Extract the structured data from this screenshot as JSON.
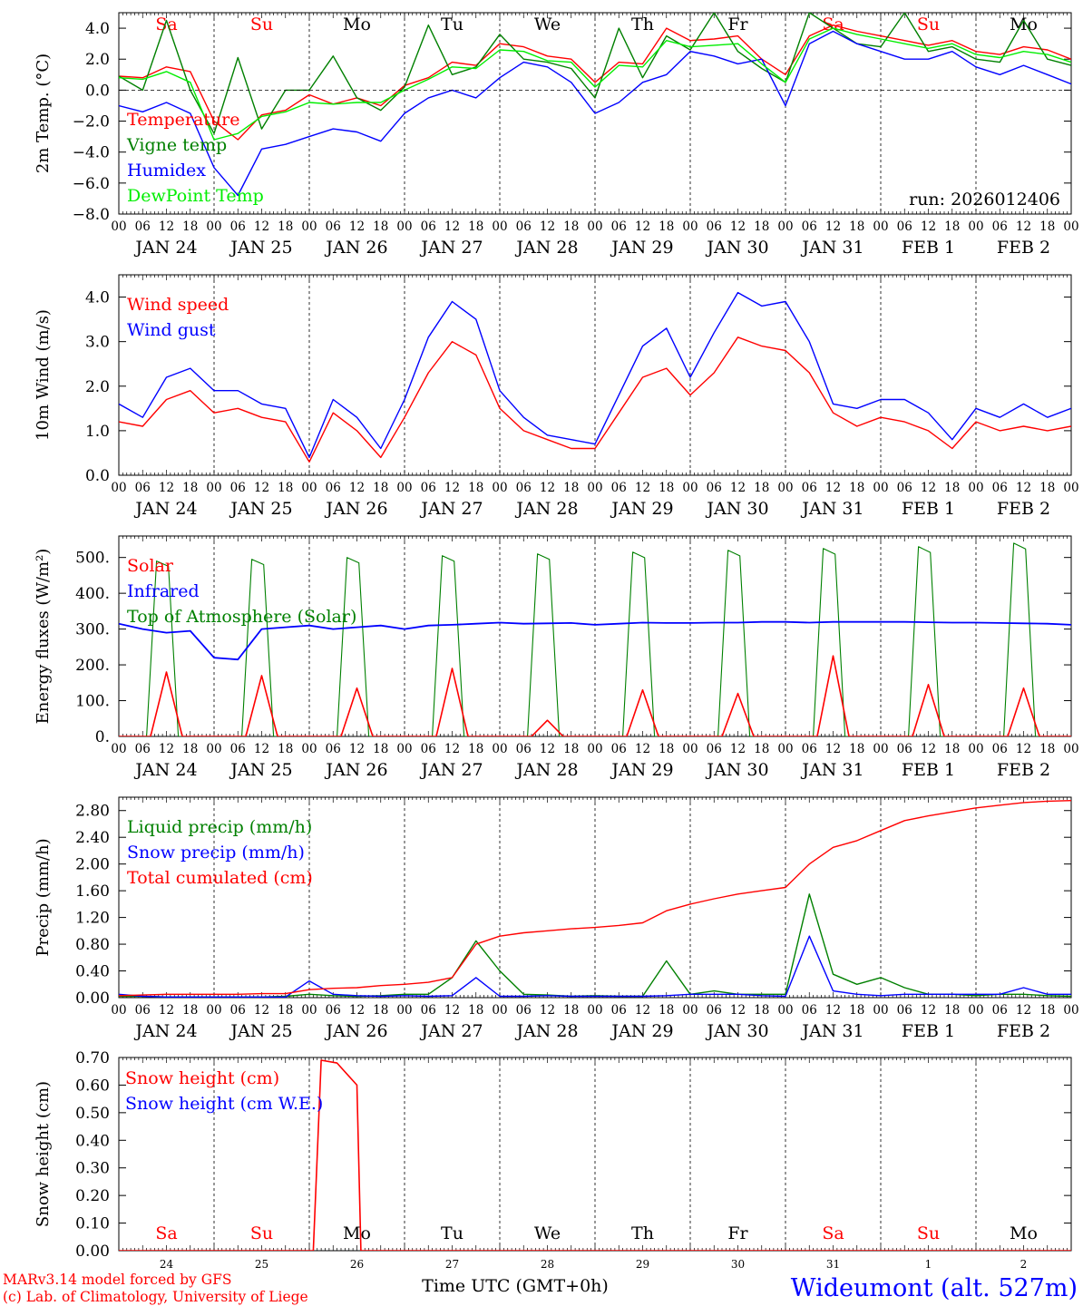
{
  "footer": {
    "model": "MARv3.14 model forced by GFS",
    "copyright": "(c) Lab. of Climatology, University of Liege",
    "time_label": "Time UTC (GMT+0h)",
    "station": "Wideumont (alt. 527m)"
  },
  "days": [
    "JAN 24",
    "JAN 25",
    "JAN 26",
    "JAN 27",
    "JAN 28",
    "JAN 29",
    "JAN 30",
    "JAN 31",
    "FEB  1",
    "FEB  2"
  ],
  "day_numbers": [
    "24",
    "25",
    "26",
    "27",
    "28",
    "29",
    "30",
    "31",
    "1",
    "2"
  ],
  "weekdays": [
    "Sa",
    "Su",
    "Mo",
    "Tu",
    "We",
    "Th",
    "Fr",
    "Sa",
    "Su",
    "Mo"
  ],
  "weekday_colors": [
    "#ff0000",
    "#ff0000",
    "#000000",
    "#000000",
    "#000000",
    "#000000",
    "#000000",
    "#ff0000",
    "#ff0000",
    "#000000"
  ],
  "hour_ticks": [
    "00",
    "06",
    "12",
    "18"
  ],
  "final_hour": "00",
  "colors": {
    "red": "#ff0000",
    "green": "#008000",
    "blue": "#0000ff",
    "lightgreen": "#00ee00"
  },
  "chart_data": [
    {
      "type": "line",
      "ylabel": "2m Temp. (°C)",
      "ylim": [
        -8,
        5
      ],
      "yticks": [
        "−8.0",
        "−6.0",
        "−4.0",
        "−2.0",
        "0.0",
        "2.0",
        "4.0"
      ],
      "ytick_values": [
        -8,
        -6,
        -4,
        -2,
        0,
        2,
        4
      ],
      "zero_line": true,
      "annotation": "run: 2026012406",
      "x_hours": [
        0,
        6,
        12,
        18,
        24,
        30,
        36,
        42,
        48,
        54,
        60,
        66,
        72,
        78,
        84,
        90,
        96,
        102,
        108,
        114,
        120,
        126,
        132,
        138,
        144,
        150,
        156,
        162,
        168,
        174,
        180,
        186,
        192,
        198,
        204,
        210,
        216,
        222,
        228,
        234,
        240
      ],
      "series": [
        {
          "name": "Temperature",
          "color": "#ff0000",
          "values": [
            0.9,
            0.8,
            1.5,
            1.2,
            -2.0,
            -3.2,
            -1.6,
            -1.3,
            -0.3,
            -0.9,
            -0.5,
            -1.0,
            0.3,
            0.8,
            1.8,
            1.6,
            3.0,
            2.8,
            2.2,
            2.0,
            0.5,
            1.8,
            1.7,
            4.0,
            3.2,
            3.3,
            3.5,
            2.0,
            1.0,
            3.5,
            4.2,
            3.8,
            3.5,
            3.2,
            2.9,
            3.2,
            2.5,
            2.3,
            2.8,
            2.6,
            2.0
          ]
        },
        {
          "name": "Vigne temp",
          "color": "#008000",
          "values": [
            0.9,
            0.0,
            4.5,
            0.0,
            -2.8,
            2.1,
            -2.5,
            0.0,
            0.0,
            2.2,
            -0.5,
            -1.3,
            0.2,
            4.2,
            1.0,
            1.5,
            3.6,
            2.0,
            1.8,
            1.4,
            -0.5,
            4.0,
            0.8,
            3.5,
            2.6,
            5.0,
            2.5,
            1.4,
            0.5,
            5.0,
            4.0,
            3.0,
            2.8,
            5.0,
            2.5,
            2.8,
            2.0,
            1.8,
            4.5,
            2.0,
            1.6
          ]
        },
        {
          "name": "Humidex",
          "color": "#0000ff",
          "values": [
            -1.0,
            -1.4,
            -0.8,
            -1.5,
            -5.0,
            -6.8,
            -3.8,
            -3.5,
            -3.0,
            -2.5,
            -2.7,
            -3.3,
            -1.5,
            -0.5,
            0.0,
            -0.5,
            0.8,
            1.8,
            1.5,
            0.5,
            -1.5,
            -0.8,
            0.5,
            1.0,
            2.5,
            2.2,
            1.7,
            2.0,
            -1.0,
            3.0,
            3.8,
            3.0,
            2.5,
            2.0,
            2.0,
            2.5,
            1.5,
            1.0,
            1.6,
            1.0,
            0.4
          ]
        },
        {
          "name": "DewPoint Temp",
          "color": "#00ee00",
          "values": [
            0.8,
            0.7,
            1.2,
            0.5,
            -3.2,
            -2.8,
            -1.7,
            -1.4,
            -0.8,
            -0.9,
            -0.8,
            -0.8,
            0.0,
            0.7,
            1.5,
            1.4,
            2.6,
            2.5,
            1.9,
            1.8,
            0.2,
            1.6,
            1.5,
            3.2,
            2.8,
            2.9,
            3.0,
            1.7,
            0.5,
            3.3,
            4.0,
            3.6,
            3.3,
            3.0,
            2.7,
            3.0,
            2.3,
            2.1,
            2.5,
            2.3,
            1.8
          ]
        }
      ]
    },
    {
      "type": "line",
      "ylabel": "10m Wind (m/s)",
      "ylim": [
        0,
        4.5
      ],
      "yticks": [
        "0.0",
        "1.0",
        "2.0",
        "3.0",
        "4.0"
      ],
      "ytick_values": [
        0,
        1,
        2,
        3,
        4
      ],
      "x_hours": [
        0,
        6,
        12,
        18,
        24,
        30,
        36,
        42,
        48,
        54,
        60,
        66,
        72,
        78,
        84,
        90,
        96,
        102,
        108,
        114,
        120,
        126,
        132,
        138,
        144,
        150,
        156,
        162,
        168,
        174,
        180,
        186,
        192,
        198,
        204,
        210,
        216,
        222,
        228,
        234,
        240
      ],
      "series": [
        {
          "name": "Wind speed",
          "color": "#ff0000",
          "values": [
            1.2,
            1.1,
            1.7,
            1.9,
            1.4,
            1.5,
            1.3,
            1.2,
            0.3,
            1.4,
            1.0,
            0.4,
            1.3,
            2.3,
            3.0,
            2.7,
            1.5,
            1.0,
            0.8,
            0.6,
            0.6,
            1.4,
            2.2,
            2.4,
            1.8,
            2.3,
            3.1,
            2.9,
            2.8,
            2.3,
            1.4,
            1.1,
            1.3,
            1.2,
            1.0,
            0.6,
            1.2,
            1.0,
            1.1,
            1.0,
            1.1
          ]
        },
        {
          "name": "Wind gust",
          "color": "#0000ff",
          "values": [
            1.6,
            1.3,
            2.2,
            2.4,
            1.9,
            1.9,
            1.6,
            1.5,
            0.4,
            1.7,
            1.3,
            0.6,
            1.7,
            3.1,
            3.9,
            3.5,
            1.9,
            1.3,
            0.9,
            0.8,
            0.7,
            1.8,
            2.9,
            3.3,
            2.2,
            3.2,
            4.1,
            3.8,
            3.9,
            3.0,
            1.6,
            1.5,
            1.7,
            1.7,
            1.4,
            0.8,
            1.5,
            1.3,
            1.6,
            1.3,
            1.5
          ]
        }
      ]
    },
    {
      "type": "line",
      "ylabel": "Energy fluxes (W/m²)",
      "ylim": [
        0,
        560
      ],
      "yticks": [
        "0.",
        "100.",
        "200.",
        "300.",
        "400.",
        "500."
      ],
      "ytick_values": [
        0,
        100,
        200,
        300,
        400,
        500
      ],
      "solar_peaks": [
        180,
        170,
        135,
        190,
        45,
        130,
        120,
        225,
        145,
        135
      ],
      "toa_peaks": [
        490,
        495,
        500,
        505,
        510,
        515,
        520,
        525,
        530,
        540
      ],
      "infrared": [
        315,
        300,
        290,
        295,
        220,
        215,
        300,
        305,
        310,
        300,
        305,
        310,
        300,
        310,
        312,
        315,
        318,
        315,
        316,
        317,
        312,
        315,
        318,
        317,
        317,
        318,
        318,
        320,
        320,
        318,
        320,
        320,
        320,
        320,
        319,
        318,
        318,
        317,
        316,
        315,
        312
      ],
      "series": [
        {
          "name": "Solar",
          "color": "#ff0000"
        },
        {
          "name": "Infrared",
          "color": "#0000ff"
        },
        {
          "name": "Top of Atmosphere (Solar)",
          "color": "#008000"
        }
      ]
    },
    {
      "type": "line",
      "ylabel": "Precip (mm/h)",
      "ylim": [
        0,
        3.0
      ],
      "yticks": [
        "0.00",
        "0.40",
        "0.80",
        "1.20",
        "1.60",
        "2.00",
        "2.40",
        "2.80"
      ],
      "ytick_values": [
        0,
        0.4,
        0.8,
        1.2,
        1.6,
        2.0,
        2.4,
        2.8
      ],
      "x_hours": [
        0,
        6,
        12,
        18,
        24,
        30,
        36,
        42,
        48,
        54,
        60,
        66,
        72,
        78,
        84,
        90,
        96,
        102,
        108,
        114,
        120,
        126,
        132,
        138,
        144,
        150,
        156,
        162,
        168,
        174,
        180,
        186,
        192,
        198,
        204,
        210,
        216,
        222,
        228,
        234,
        240
      ],
      "series": [
        {
          "name": "Liquid precip (mm/h)",
          "color": "#008000",
          "values": [
            0.02,
            0.02,
            0.01,
            0.01,
            0.01,
            0.01,
            0.01,
            0.02,
            0.05,
            0.03,
            0.02,
            0.03,
            0.05,
            0.05,
            0.3,
            0.85,
            0.4,
            0.05,
            0.04,
            0.02,
            0.03,
            0.02,
            0.02,
            0.55,
            0.05,
            0.1,
            0.05,
            0.05,
            0.05,
            1.55,
            0.35,
            0.2,
            0.3,
            0.15,
            0.05,
            0.05,
            0.03,
            0.05,
            0.05,
            0.03,
            0.02
          ]
        },
        {
          "name": "Snow precip (mm/h)",
          "color": "#0000ff",
          "values": [
            0.05,
            0.02,
            0.01,
            0.01,
            0.01,
            0.01,
            0.01,
            0.01,
            0.25,
            0.05,
            0.03,
            0.02,
            0.03,
            0.02,
            0.03,
            0.3,
            0.02,
            0.02,
            0.03,
            0.02,
            0.02,
            0.02,
            0.02,
            0.03,
            0.05,
            0.05,
            0.05,
            0.03,
            0.02,
            0.92,
            0.1,
            0.05,
            0.03,
            0.05,
            0.05,
            0.05,
            0.05,
            0.05,
            0.15,
            0.05,
            0.05
          ]
        },
        {
          "name": "Total cumulated (cm)",
          "color": "#ff0000",
          "values": [
            0.03,
            0.04,
            0.05,
            0.05,
            0.05,
            0.05,
            0.06,
            0.06,
            0.12,
            0.14,
            0.15,
            0.18,
            0.2,
            0.23,
            0.3,
            0.8,
            0.92,
            0.97,
            1.0,
            1.03,
            1.05,
            1.08,
            1.12,
            1.3,
            1.4,
            1.48,
            1.55,
            1.6,
            1.65,
            2.0,
            2.25,
            2.35,
            2.5,
            2.65,
            2.72,
            2.78,
            2.84,
            2.88,
            2.92,
            2.94,
            2.95
          ]
        }
      ]
    },
    {
      "type": "line",
      "ylabel": "Snow height (cm)",
      "ylim": [
        0,
        0.7
      ],
      "yticks": [
        "0.00",
        "0.10",
        "0.20",
        "0.30",
        "0.40",
        "0.50",
        "0.60",
        "0.70"
      ],
      "ytick_values": [
        0,
        0.1,
        0.2,
        0.3,
        0.4,
        0.5,
        0.6,
        0.7
      ],
      "series": [
        {
          "name": "Snow height (cm)",
          "color": "#ff0000",
          "points": [
            [
              0,
              0
            ],
            [
              49,
              0
            ],
            [
              51,
              0.69
            ],
            [
              55,
              0.68
            ],
            [
              60,
              0.6
            ],
            [
              61,
              0
            ],
            [
              240,
              0
            ]
          ]
        },
        {
          "name": "Snow height (cm W.E.)",
          "color": "#0000ff"
        }
      ]
    }
  ]
}
